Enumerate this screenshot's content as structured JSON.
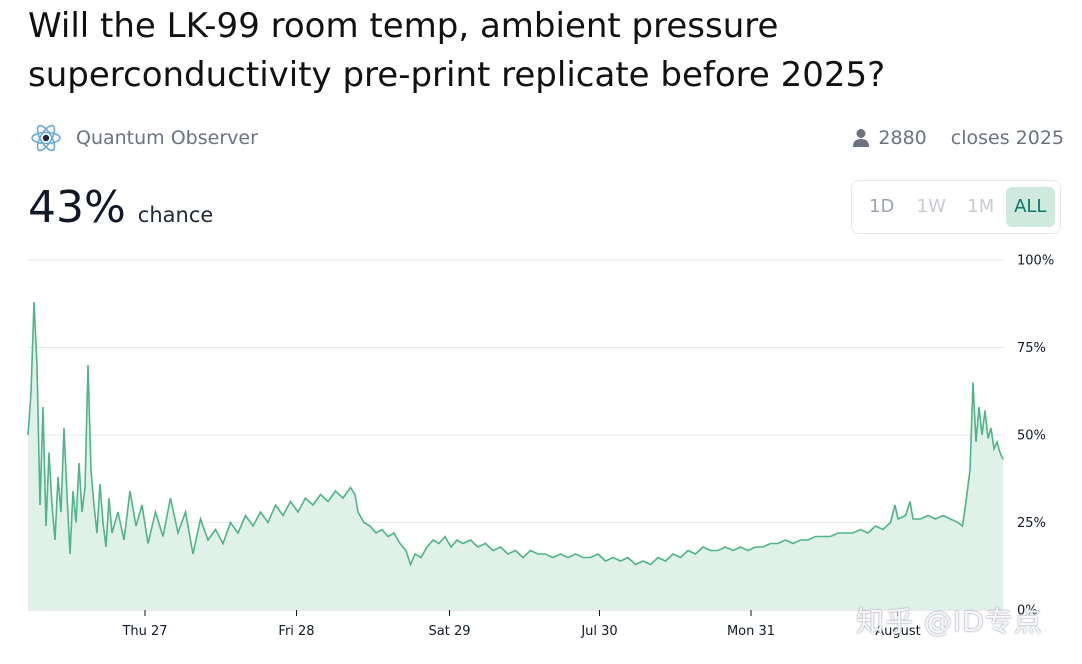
{
  "market": {
    "title": "Will the LK-99 room temp, ambient pressure superconductivity pre-print replicate before 2025?",
    "creator": "Quantum Observer",
    "traders": "2880",
    "closes": "closes 2025",
    "probability": "43%",
    "probability_label": "chance"
  },
  "icons": {
    "avatar": "atom-icon",
    "traders": "user-icon"
  },
  "range_buttons": [
    "1D",
    "1W",
    "1M",
    "ALL"
  ],
  "range_selected": "ALL",
  "colors": {
    "line": "#4db587",
    "area": "#dff1e8",
    "active_bg": "#cfe9df",
    "active_text": "#0f766e"
  },
  "watermark": "知乎 @ID专点",
  "chart_data": {
    "type": "area",
    "x_ticks": [
      "Thu 27",
      "Fri 28",
      "Sat 29",
      "Jul 30",
      "Mon 31",
      "August"
    ],
    "y_ticks": [
      "0%",
      "25%",
      "50%",
      "75%",
      "100%"
    ],
    "ylim": [
      0,
      100
    ],
    "grid": true,
    "series": [
      {
        "points": [
          [
            0,
            50
          ],
          [
            0.02,
            62
          ],
          [
            0.04,
            88
          ],
          [
            0.06,
            70
          ],
          [
            0.08,
            30
          ],
          [
            0.1,
            58
          ],
          [
            0.12,
            24
          ],
          [
            0.14,
            45
          ],
          [
            0.16,
            30
          ],
          [
            0.18,
            20
          ],
          [
            0.2,
            38
          ],
          [
            0.22,
            28
          ],
          [
            0.24,
            52
          ],
          [
            0.26,
            33
          ],
          [
            0.28,
            16
          ],
          [
            0.3,
            34
          ],
          [
            0.32,
            25
          ],
          [
            0.34,
            42
          ],
          [
            0.36,
            28
          ],
          [
            0.38,
            35
          ],
          [
            0.4,
            70
          ],
          [
            0.42,
            40
          ],
          [
            0.44,
            30
          ],
          [
            0.46,
            22
          ],
          [
            0.48,
            36
          ],
          [
            0.5,
            25
          ],
          [
            0.52,
            18
          ],
          [
            0.54,
            32
          ],
          [
            0.56,
            22
          ],
          [
            0.6,
            28
          ],
          [
            0.64,
            20
          ],
          [
            0.68,
            34
          ],
          [
            0.72,
            24
          ],
          [
            0.76,
            30
          ],
          [
            0.8,
            19
          ],
          [
            0.85,
            28
          ],
          [
            0.9,
            21
          ],
          [
            0.95,
            32
          ],
          [
            1.0,
            22
          ],
          [
            1.05,
            28
          ],
          [
            1.1,
            16
          ],
          [
            1.15,
            26
          ],
          [
            1.2,
            20
          ],
          [
            1.25,
            23
          ],
          [
            1.3,
            19
          ],
          [
            1.35,
            25
          ],
          [
            1.4,
            22
          ],
          [
            1.45,
            27
          ],
          [
            1.5,
            24
          ],
          [
            1.55,
            28
          ],
          [
            1.6,
            25
          ],
          [
            1.65,
            30
          ],
          [
            1.7,
            27
          ],
          [
            1.75,
            31
          ],
          [
            1.8,
            28
          ],
          [
            1.85,
            32
          ],
          [
            1.9,
            30
          ],
          [
            1.95,
            33
          ],
          [
            2.0,
            31
          ],
          [
            2.05,
            34
          ],
          [
            2.1,
            32
          ],
          [
            2.15,
            35
          ],
          [
            2.18,
            33
          ],
          [
            2.2,
            28
          ],
          [
            2.24,
            25
          ],
          [
            2.28,
            24
          ],
          [
            2.32,
            22
          ],
          [
            2.36,
            23
          ],
          [
            2.4,
            21
          ],
          [
            2.44,
            22
          ],
          [
            2.48,
            19
          ],
          [
            2.52,
            17
          ],
          [
            2.55,
            13
          ],
          [
            2.58,
            16
          ],
          [
            2.62,
            15
          ],
          [
            2.66,
            18
          ],
          [
            2.7,
            20
          ],
          [
            2.74,
            19
          ],
          [
            2.78,
            21
          ],
          [
            2.82,
            18
          ],
          [
            2.86,
            20
          ],
          [
            2.9,
            19
          ],
          [
            2.95,
            20
          ],
          [
            3.0,
            18
          ],
          [
            3.05,
            19
          ],
          [
            3.1,
            17
          ],
          [
            3.15,
            18
          ],
          [
            3.2,
            16
          ],
          [
            3.25,
            17
          ],
          [
            3.3,
            15
          ],
          [
            3.35,
            17
          ],
          [
            3.4,
            16
          ],
          [
            3.45,
            16
          ],
          [
            3.5,
            15
          ],
          [
            3.55,
            16
          ],
          [
            3.6,
            15
          ],
          [
            3.65,
            16
          ],
          [
            3.7,
            15
          ],
          [
            3.75,
            15
          ],
          [
            3.8,
            16
          ],
          [
            3.85,
            14
          ],
          [
            3.9,
            15
          ],
          [
            3.95,
            14
          ],
          [
            4.0,
            15
          ],
          [
            4.05,
            13
          ],
          [
            4.1,
            14
          ],
          [
            4.15,
            13
          ],
          [
            4.2,
            15
          ],
          [
            4.25,
            14
          ],
          [
            4.3,
            16
          ],
          [
            4.35,
            15
          ],
          [
            4.4,
            17
          ],
          [
            4.45,
            16
          ],
          [
            4.5,
            18
          ],
          [
            4.55,
            17
          ],
          [
            4.6,
            17
          ],
          [
            4.65,
            18
          ],
          [
            4.7,
            17
          ],
          [
            4.75,
            18
          ],
          [
            4.8,
            17
          ],
          [
            4.85,
            18
          ],
          [
            4.9,
            18
          ],
          [
            4.95,
            19
          ],
          [
            5.0,
            19
          ],
          [
            5.05,
            20
          ],
          [
            5.1,
            19
          ],
          [
            5.15,
            20
          ],
          [
            5.2,
            20
          ],
          [
            5.25,
            21
          ],
          [
            5.3,
            21
          ],
          [
            5.35,
            21
          ],
          [
            5.4,
            22
          ],
          [
            5.45,
            22
          ],
          [
            5.5,
            22
          ],
          [
            5.55,
            23
          ],
          [
            5.6,
            22
          ],
          [
            5.65,
            24
          ],
          [
            5.7,
            23
          ],
          [
            5.75,
            25
          ],
          [
            5.78,
            30
          ],
          [
            5.8,
            26
          ],
          [
            5.85,
            27
          ],
          [
            5.88,
            31
          ],
          [
            5.9,
            26
          ],
          [
            5.95,
            26
          ],
          [
            6.0,
            27
          ],
          [
            6.05,
            26
          ],
          [
            6.1,
            27
          ],
          [
            6.15,
            26
          ],
          [
            6.2,
            25
          ],
          [
            6.23,
            24
          ],
          [
            6.25,
            30
          ],
          [
            6.28,
            40
          ],
          [
            6.3,
            65
          ],
          [
            6.32,
            48
          ],
          [
            6.34,
            58
          ],
          [
            6.36,
            50
          ],
          [
            6.38,
            57
          ],
          [
            6.4,
            49
          ],
          [
            6.42,
            52
          ],
          [
            6.44,
            46
          ],
          [
            6.46,
            48
          ],
          [
            6.48,
            45
          ],
          [
            6.5,
            43
          ]
        ]
      }
    ],
    "x_tick_positions": [
      0.78,
      1.79,
      2.81,
      3.81,
      4.82,
      5.8
    ]
  }
}
